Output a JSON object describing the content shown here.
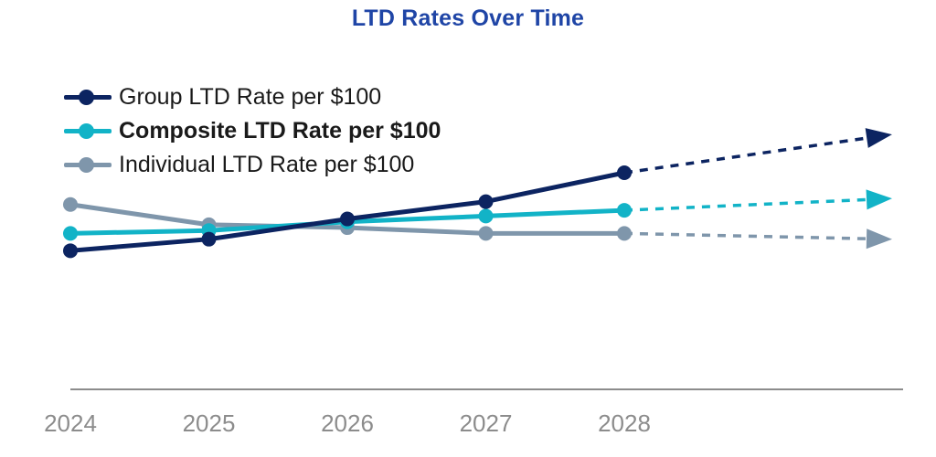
{
  "chart_data": {
    "type": "line",
    "title": "LTD Rates Over Time",
    "xlabel": "",
    "ylabel": "",
    "categories": [
      "2024",
      "2025",
      "2026",
      "2027",
      "2028"
    ],
    "ylim": [
      0,
      100
    ],
    "grid": false,
    "legend_position": "top-left",
    "series": [
      {
        "name": "Group LTD Rate per $100",
        "color": "#0c2461",
        "bold": false,
        "values": [
          48,
          52,
          59,
          65,
          75
        ],
        "projection": {
          "label": "trend continues beyond 2028",
          "end_value": 88
        }
      },
      {
        "name": "Composite LTD Rate per $100",
        "color": "#12b3c7",
        "bold": true,
        "values": [
          54,
          55,
          58,
          60,
          62
        ],
        "projection": {
          "label": "trend continues beyond 2028",
          "end_value": 66
        }
      },
      {
        "name": "Individual LTD Rate per $100",
        "color": "#7f96ab",
        "bold": false,
        "values": [
          64,
          57,
          56,
          54,
          54
        ],
        "projection": {
          "label": "trend continues beyond 2028",
          "end_value": 52
        }
      }
    ]
  }
}
